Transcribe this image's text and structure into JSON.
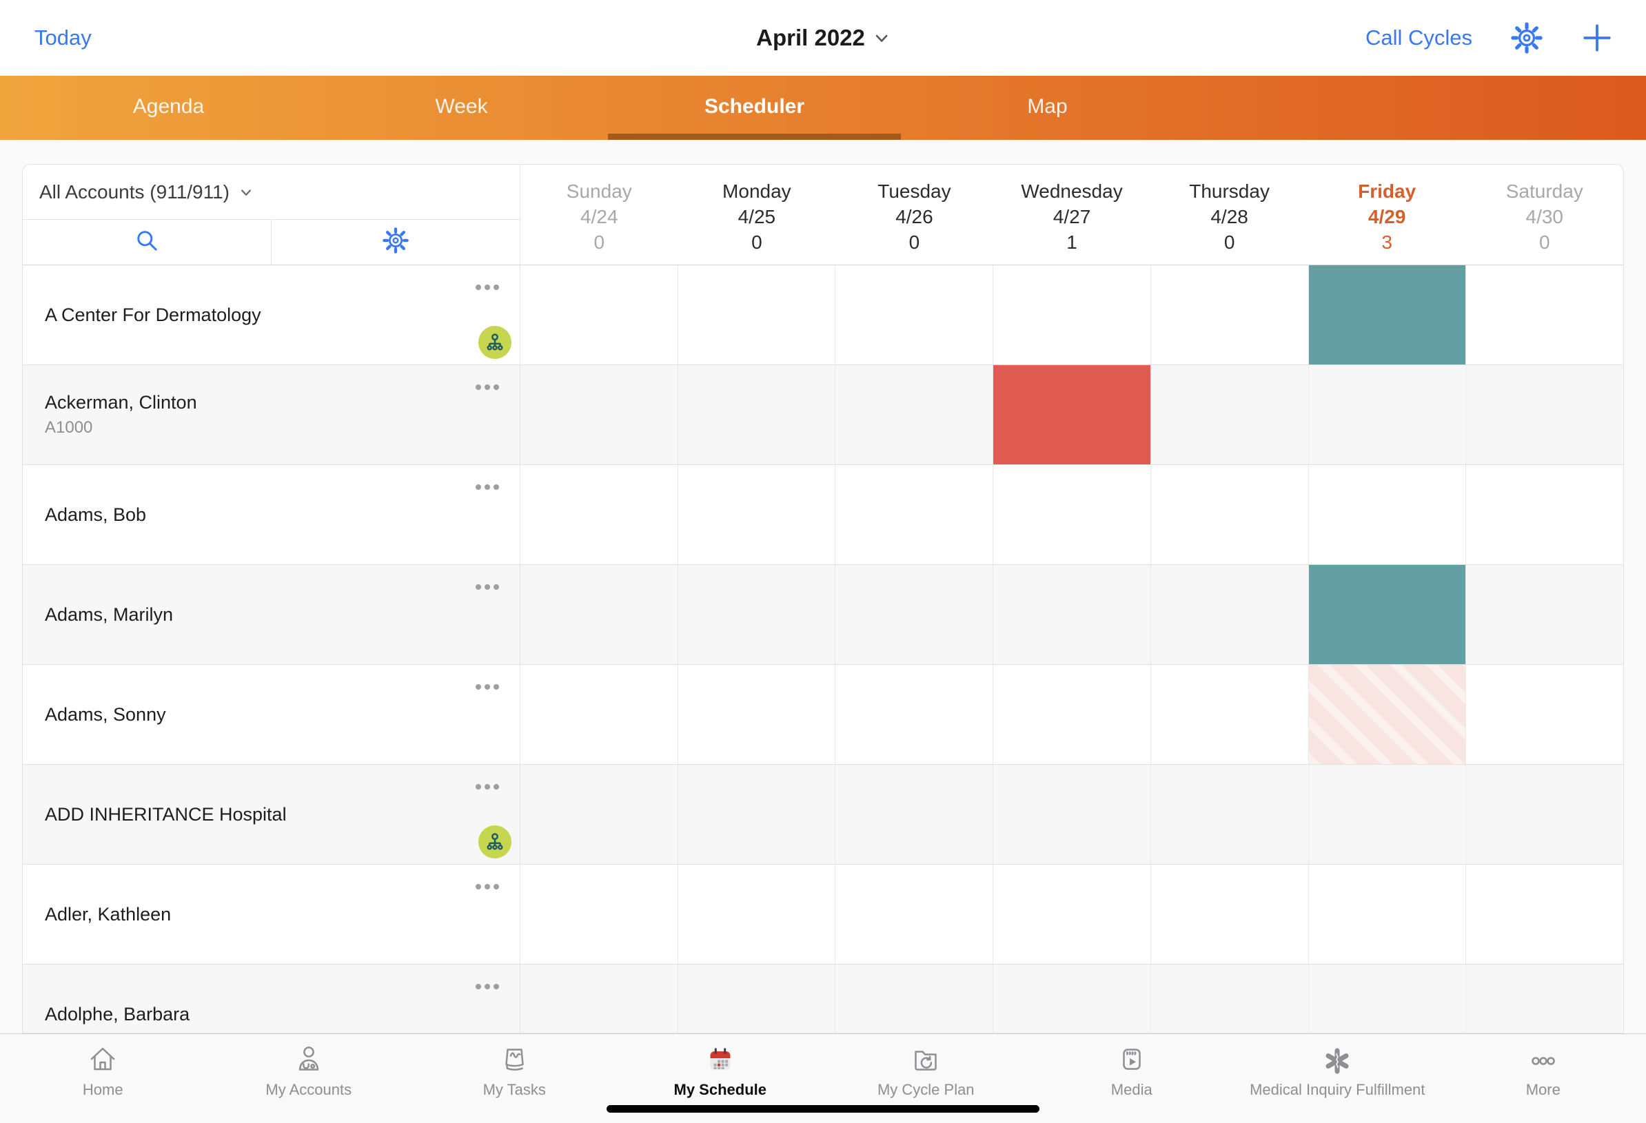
{
  "topbar": {
    "today_label": "Today",
    "title": "April 2022",
    "call_cycles_label": "Call Cycles",
    "icons": [
      "chevron-down-icon",
      "settings-gear-icon",
      "add-plus-icon"
    ]
  },
  "tabs": [
    {
      "label": "Agenda",
      "active": false
    },
    {
      "label": "Week",
      "active": false
    },
    {
      "label": "Scheduler",
      "active": true
    },
    {
      "label": "Map",
      "active": false
    }
  ],
  "accounts_panel": {
    "filter_label": "All Accounts (911/911)",
    "icons": [
      "chevron-down-icon",
      "search-icon",
      "settings-gear-icon"
    ]
  },
  "week": {
    "days": [
      {
        "name": "Sunday",
        "date": "4/24",
        "count": "0",
        "style": "weekend"
      },
      {
        "name": "Monday",
        "date": "4/25",
        "count": "0",
        "style": "weekday"
      },
      {
        "name": "Tuesday",
        "date": "4/26",
        "count": "0",
        "style": "weekday"
      },
      {
        "name": "Wednesday",
        "date": "4/27",
        "count": "1",
        "style": "weekday"
      },
      {
        "name": "Thursday",
        "date": "4/28",
        "count": "0",
        "style": "weekday"
      },
      {
        "name": "Friday",
        "date": "4/29",
        "count": "3",
        "style": "today"
      },
      {
        "name": "Saturday",
        "date": "4/30",
        "count": "0",
        "style": "weekend"
      }
    ]
  },
  "accounts": [
    {
      "name": "A Center For Dermatology",
      "code": "",
      "org_affiliation": true
    },
    {
      "name": "Ackerman, Clinton",
      "code": "A1000",
      "org_affiliation": false
    },
    {
      "name": "Adams, Bob",
      "code": "",
      "org_affiliation": false
    },
    {
      "name": "Adams, Marilyn",
      "code": "",
      "org_affiliation": false
    },
    {
      "name": "Adams, Sonny",
      "code": "",
      "org_affiliation": false
    },
    {
      "name": "ADD INHERITANCE Hospital",
      "code": "",
      "org_affiliation": true
    },
    {
      "name": "Adler, Kathleen",
      "code": "",
      "org_affiliation": false
    },
    {
      "name": "Adolphe, Barbara",
      "code": "",
      "org_affiliation": false
    }
  ],
  "events": [
    {
      "account_row": 0,
      "day_col": 5,
      "type": "scheduled"
    },
    {
      "account_row": 1,
      "day_col": 3,
      "type": "conflict"
    },
    {
      "account_row": 3,
      "day_col": 5,
      "type": "scheduled"
    },
    {
      "account_row": 4,
      "day_col": 5,
      "type": "suggested"
    }
  ],
  "bottom_nav": [
    {
      "label": "Home",
      "icon": "home-icon",
      "active": false
    },
    {
      "label": "My Accounts",
      "icon": "my-accounts-icon",
      "active": false
    },
    {
      "label": "My Tasks",
      "icon": "my-tasks-icon",
      "active": false
    },
    {
      "label": "My Schedule",
      "icon": "my-schedule-icon",
      "active": true
    },
    {
      "label": "My Cycle Plan",
      "icon": "my-cycle-plan-icon",
      "active": false
    },
    {
      "label": "Media",
      "icon": "media-icon",
      "active": false
    },
    {
      "label": "Medical Inquiry Fulfillment",
      "icon": "medical-inquiry-icon",
      "active": false
    },
    {
      "label": "More",
      "icon": "more-icon",
      "active": false
    }
  ],
  "colors": {
    "accent_blue": "#3878f4",
    "tab_gradient_left": "#f0a43c",
    "tab_gradient_right": "#dc5a20",
    "tab_underline": "#a25a1d",
    "today_orange": "#d4612c",
    "event_scheduled_teal": "#64a0a3",
    "event_conflict_red": "#e05b50",
    "event_suggested_pink": "#f8e4e1",
    "org_badge_green": "#c6d64f"
  }
}
